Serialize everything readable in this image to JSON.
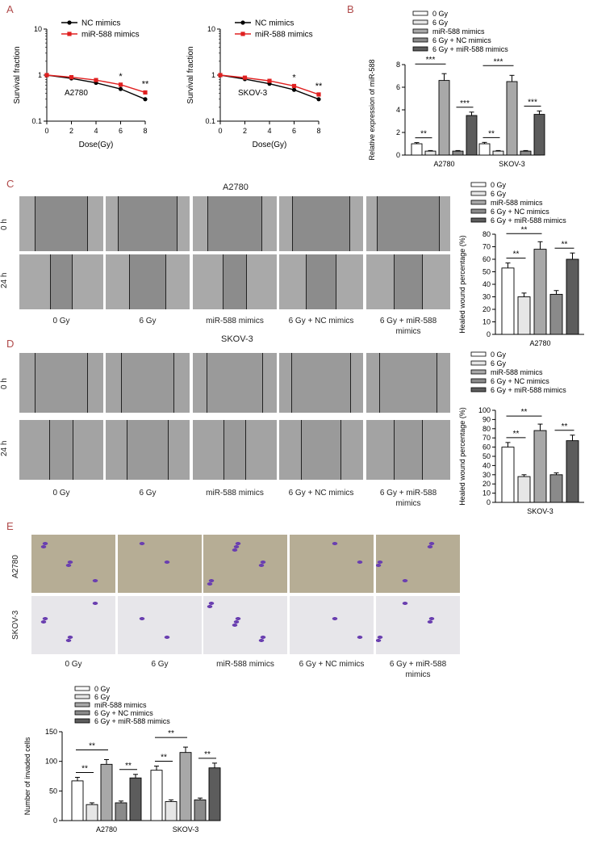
{
  "panels": {
    "A": "A",
    "B": "B",
    "C": "C",
    "D": "D",
    "E": "E"
  },
  "colors": {
    "nc": "#000000",
    "mir": "#e02020",
    "bars": [
      "#ffffff",
      "#e6e6e6",
      "#a8a8a8",
      "#8a8a8a",
      "#5c5c5c"
    ],
    "micro_gray": "#8e8e8e",
    "stain_bg_a2780": "#b6ad95",
    "stain_bg_skov3": "#e7e6ea",
    "cell_purple": "#6a3fb0"
  },
  "survival_legend": [
    "NC mimics",
    "miR-588 mimics"
  ],
  "chart_data": [
    {
      "type": "line",
      "title": "A2780",
      "xlabel": "Dose(Gy)",
      "ylabel": "Survival fraction",
      "x": [
        0,
        2,
        4,
        6,
        8
      ],
      "xticks": [
        "0",
        "2",
        "4",
        "6",
        "8"
      ],
      "yscale": "log",
      "ylim": [
        0.1,
        10
      ],
      "yticks": [
        "0.1",
        "1",
        "10"
      ],
      "series": [
        {
          "name": "NC mimics",
          "values": [
            1.0,
            0.85,
            0.68,
            0.5,
            0.3
          ]
        },
        {
          "name": "miR-588 mimics",
          "values": [
            1.0,
            0.9,
            0.78,
            0.62,
            0.42
          ]
        }
      ],
      "annotations": [
        {
          "x": 6,
          "text": "*"
        },
        {
          "x": 8,
          "text": "**"
        }
      ]
    },
    {
      "type": "line",
      "title": "SKOV-3",
      "xlabel": "Dose(Gy)",
      "ylabel": "Survival fraction",
      "x": [
        0,
        2,
        4,
        6,
        8
      ],
      "xticks": [
        "0",
        "2",
        "4",
        "6",
        "8"
      ],
      "yscale": "log",
      "ylim": [
        0.1,
        10
      ],
      "yticks": [
        "0.1",
        "1",
        "10"
      ],
      "series": [
        {
          "name": "NC mimics",
          "values": [
            1.0,
            0.82,
            0.65,
            0.48,
            0.3
          ]
        },
        {
          "name": "miR-588 mimics",
          "values": [
            1.0,
            0.88,
            0.75,
            0.58,
            0.38
          ]
        }
      ],
      "annotations": [
        {
          "x": 6,
          "text": "*"
        },
        {
          "x": 8,
          "text": "**"
        }
      ]
    },
    {
      "type": "bar",
      "ylabel": "Relative expression of miR-588",
      "categories": [
        "A2780",
        "SKOV-3"
      ],
      "ylim": [
        0,
        8
      ],
      "yticks": [
        "0",
        "2",
        "4",
        "6",
        "8"
      ],
      "legend": [
        "0 Gy",
        "6 Gy",
        "miR-588 mimics",
        "6 Gy + NC mimics",
        "6 Gy + miR-588 mimics"
      ],
      "series": [
        {
          "name": "0 Gy",
          "values": [
            1.0,
            1.0
          ],
          "errors": [
            0.1,
            0.12
          ]
        },
        {
          "name": "6 Gy",
          "values": [
            0.35,
            0.35
          ],
          "errors": [
            0.05,
            0.05
          ]
        },
        {
          "name": "miR-588 mimics",
          "values": [
            6.6,
            6.5
          ],
          "errors": [
            0.6,
            0.55
          ]
        },
        {
          "name": "6 Gy + NC mimics",
          "values": [
            0.35,
            0.35
          ],
          "errors": [
            0.05,
            0.05
          ]
        },
        {
          "name": "6 Gy + miR-588 mimics",
          "values": [
            3.5,
            3.6
          ],
          "errors": [
            0.3,
            0.3
          ]
        }
      ],
      "significance": [
        {
          "group": 0,
          "from": 0,
          "to": 1,
          "text": "**"
        },
        {
          "group": 0,
          "from": 0,
          "to": 2,
          "text": "***"
        },
        {
          "group": 0,
          "from": 3,
          "to": 4,
          "text": "***"
        },
        {
          "group": 1,
          "from": 0,
          "to": 1,
          "text": "**"
        },
        {
          "group": 1,
          "from": 0,
          "to": 2,
          "text": "***"
        },
        {
          "group": 1,
          "from": 3,
          "to": 4,
          "text": "***"
        }
      ]
    },
    {
      "type": "bar",
      "ylabel": "Healed wound percentage (%)",
      "categories": [
        "A2780"
      ],
      "ylim": [
        0,
        80
      ],
      "yticks": [
        "0",
        "10",
        "20",
        "30",
        "40",
        "50",
        "60",
        "70",
        "80"
      ],
      "legend": [
        "0 Gy",
        "6 Gy",
        "miR-588 mimics",
        "6 Gy + NC mimics",
        "6 Gy + miR-588 mimics"
      ],
      "series": [
        {
          "name": "0 Gy",
          "values": [
            53
          ],
          "errors": [
            4
          ]
        },
        {
          "name": "6 Gy",
          "values": [
            30
          ],
          "errors": [
            3
          ]
        },
        {
          "name": "miR-588 mimics",
          "values": [
            68
          ],
          "errors": [
            6
          ]
        },
        {
          "name": "6 Gy + NC mimics",
          "values": [
            32
          ],
          "errors": [
            3
          ]
        },
        {
          "name": "6 Gy + miR-588 mimics",
          "values": [
            60
          ],
          "errors": [
            5
          ]
        }
      ],
      "significance": [
        {
          "group": 0,
          "from": 0,
          "to": 1,
          "text": "**"
        },
        {
          "group": 0,
          "from": 0,
          "to": 2,
          "text": "**"
        },
        {
          "group": 0,
          "from": 3,
          "to": 4,
          "text": "**"
        }
      ]
    },
    {
      "type": "bar",
      "ylabel": "Healed wound percentage (%)",
      "categories": [
        "SKOV-3"
      ],
      "ylim": [
        0,
        100
      ],
      "yticks": [
        "0",
        "10",
        "20",
        "30",
        "40",
        "50",
        "60",
        "70",
        "80",
        "90",
        "100"
      ],
      "legend": [
        "0 Gy",
        "6 Gy",
        "miR-588 mimics",
        "6 Gy + NC mimics",
        "6 Gy + miR-588 mimics"
      ],
      "series": [
        {
          "name": "0 Gy",
          "values": [
            60
          ],
          "errors": [
            5
          ]
        },
        {
          "name": "6 Gy",
          "values": [
            28
          ],
          "errors": [
            2
          ]
        },
        {
          "name": "miR-588 mimics",
          "values": [
            78
          ],
          "errors": [
            7
          ]
        },
        {
          "name": "6 Gy + NC mimics",
          "values": [
            30
          ],
          "errors": [
            2
          ]
        },
        {
          "name": "6 Gy + miR-588 mimics",
          "values": [
            67
          ],
          "errors": [
            6
          ]
        }
      ],
      "significance": [
        {
          "group": 0,
          "from": 0,
          "to": 1,
          "text": "**"
        },
        {
          "group": 0,
          "from": 0,
          "to": 2,
          "text": "**"
        },
        {
          "group": 0,
          "from": 3,
          "to": 4,
          "text": "**"
        }
      ]
    },
    {
      "type": "bar",
      "ylabel": "Number of invaded cells",
      "categories": [
        "A2780",
        "SKOV-3"
      ],
      "ylim": [
        0,
        150
      ],
      "yticks": [
        "0",
        "50",
        "100",
        "150"
      ],
      "legend": [
        "0 Gy",
        "6 Gy",
        "miR-588 mimics",
        "6 Gy + NC mimics",
        "6 Gy + miR-588 mimics"
      ],
      "series": [
        {
          "name": "0 Gy",
          "values": [
            67,
            85
          ],
          "errors": [
            6,
            7
          ]
        },
        {
          "name": "6 Gy",
          "values": [
            27,
            32
          ],
          "errors": [
            3,
            3
          ]
        },
        {
          "name": "miR-588 mimics",
          "values": [
            95,
            115
          ],
          "errors": [
            8,
            9
          ]
        },
        {
          "name": "6 Gy + NC mimics",
          "values": [
            30,
            35
          ],
          "errors": [
            3,
            3
          ]
        },
        {
          "name": "6 Gy + miR-588 mimics",
          "values": [
            72,
            89
          ],
          "errors": [
            6,
            8
          ]
        }
      ],
      "significance": [
        {
          "group": 0,
          "from": 0,
          "to": 1,
          "text": "**"
        },
        {
          "group": 0,
          "from": 0,
          "to": 2,
          "text": "**"
        },
        {
          "group": 0,
          "from": 3,
          "to": 4,
          "text": "**"
        },
        {
          "group": 1,
          "from": 0,
          "to": 1,
          "text": "**"
        },
        {
          "group": 1,
          "from": 0,
          "to": 2,
          "text": "**"
        },
        {
          "group": 1,
          "from": 3,
          "to": 4,
          "text": "**"
        }
      ]
    }
  ],
  "migration": {
    "a2780_title": "A2780",
    "skov3_title": "SKOV-3",
    "rows": [
      "0 h",
      "24 h"
    ],
    "columns": [
      "0 Gy",
      "6 Gy",
      "miR-588 mimics",
      "6 Gy + NC mimics",
      "6 Gy + miR-588 mimics"
    ]
  },
  "invasion": {
    "rows": [
      "A2780",
      "SKOV-3"
    ],
    "columns": [
      "0 Gy",
      "6 Gy",
      "miR-588 mimics",
      "6 Gy + NC mimics",
      "6 Gy + miR-588 mimics"
    ]
  }
}
